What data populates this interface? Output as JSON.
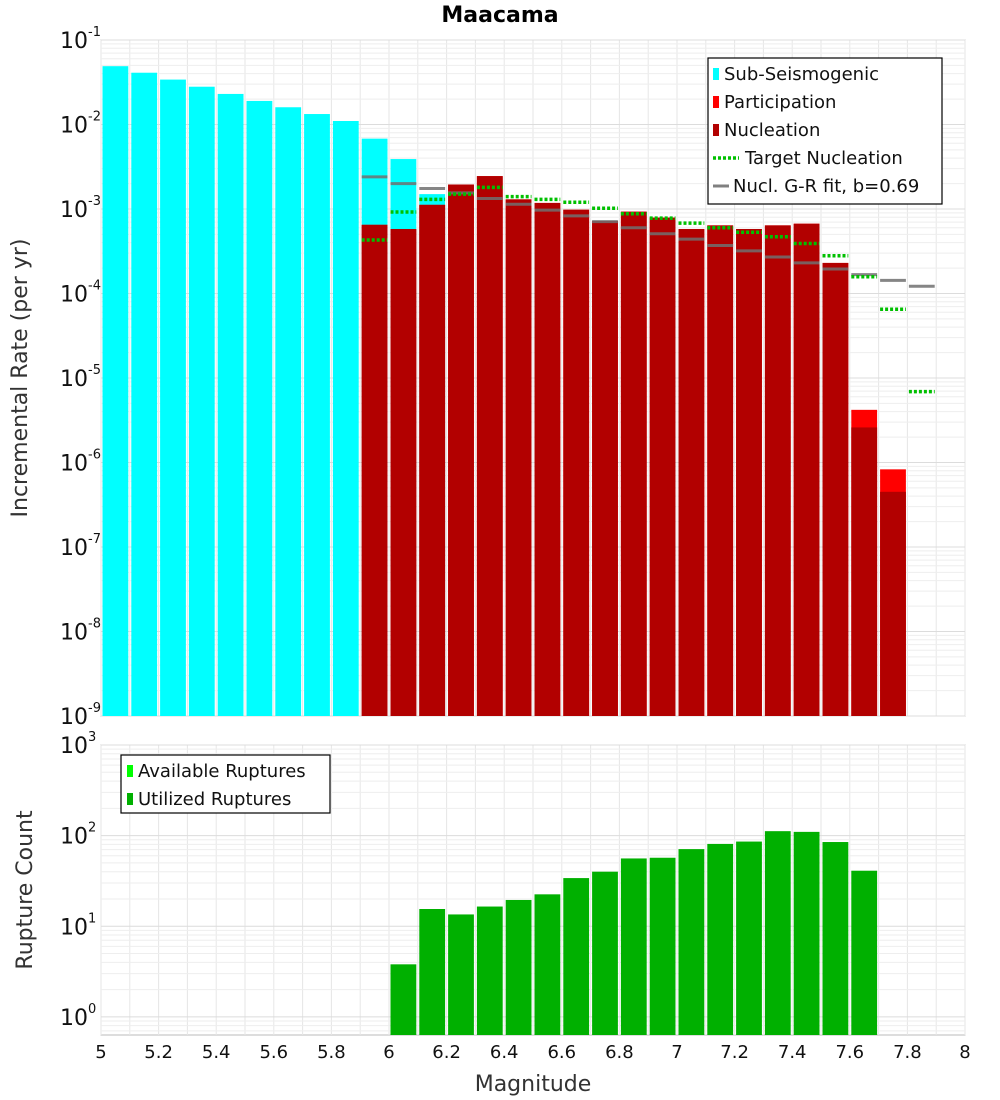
{
  "chart_data": [
    {
      "type": "bar",
      "title": "Maacama",
      "xlabel": "",
      "ylabel": "Incremental Rate (per yr)",
      "xlim": [
        5,
        8
      ],
      "ylim_log10": [
        -9,
        -1
      ],
      "log_y": true,
      "grid": true,
      "legend_position": "top-right",
      "bin_width": 0.1,
      "legend": [
        {
          "label": "Sub-Seismogenic",
          "kind": "bar",
          "color": "#00ffff"
        },
        {
          "label": "Participation",
          "kind": "bar",
          "color": "#ff0000"
        },
        {
          "label": "Nucleation",
          "kind": "bar",
          "color": "#b20000"
        },
        {
          "label": "Target Nucleation",
          "kind": "dotted-line",
          "color": "#00c000"
        },
        {
          "label": "Nucl. G-R fit, b=0.69",
          "kind": "line",
          "color": "#808080"
        }
      ],
      "series": [
        {
          "name": "Sub-Seismogenic",
          "color": "#00ffff",
          "x": [
            5.05,
            5.15,
            5.25,
            5.35,
            5.45,
            5.55,
            5.65,
            5.75,
            5.85,
            5.95,
            6.05,
            6.15
          ],
          "values": [
            0.049,
            0.041,
            0.034,
            0.028,
            0.023,
            0.019,
            0.016,
            0.0133,
            0.011,
            0.0068,
            0.0039,
            0.0015
          ]
        },
        {
          "name": "Participation",
          "color": "#ff0000",
          "x": [
            5.95,
            6.05,
            6.15,
            6.25,
            6.35,
            6.45,
            6.55,
            6.65,
            6.75,
            6.85,
            6.95,
            7.05,
            7.15,
            7.25,
            7.35,
            7.45,
            7.55,
            7.65,
            7.75
          ],
          "values": [
            0.00065,
            0.00058,
            0.00112,
            0.00195,
            0.00245,
            0.0013,
            0.00118,
            0.00098,
            0.00072,
            0.00093,
            0.00079,
            0.00058,
            0.00064,
            0.00058,
            0.00064,
            0.00067,
            0.00023,
            4.2e-06,
            8.3e-07
          ]
        },
        {
          "name": "Nucleation",
          "color": "#b20000",
          "x": [
            5.95,
            6.05,
            6.15,
            6.25,
            6.35,
            6.45,
            6.55,
            6.65,
            6.75,
            6.85,
            6.95,
            7.05,
            7.15,
            7.25,
            7.35,
            7.45,
            7.55,
            7.65,
            7.75
          ],
          "values": [
            0.00065,
            0.00058,
            0.00112,
            0.00195,
            0.00245,
            0.0013,
            0.00118,
            0.00098,
            0.00072,
            0.00093,
            0.00079,
            0.00058,
            0.00064,
            0.00058,
            0.00064,
            0.00067,
            0.00023,
            2.6e-06,
            4.5e-07
          ]
        },
        {
          "name": "Target Nucleation",
          "color": "#00c000",
          "x": [
            5.95,
            6.05,
            6.15,
            6.25,
            6.35,
            6.45,
            6.55,
            6.65,
            6.75,
            6.85,
            6.95,
            7.05,
            7.15,
            7.25,
            7.35,
            7.45,
            7.55,
            7.65,
            7.75,
            7.85
          ],
          "values": [
            0.00043,
            0.00092,
            0.0013,
            0.0015,
            0.0018,
            0.0014,
            0.0013,
            0.0012,
            0.00102,
            0.00088,
            0.00078,
            0.00068,
            0.0006,
            0.00053,
            0.00047,
            0.00039,
            0.00028,
            0.000158,
            6.5e-05,
            6.9e-06
          ]
        },
        {
          "name": "Nucl. G-R fit, b=0.69",
          "color": "#808080",
          "x": [
            5.95,
            6.05,
            6.15,
            6.25,
            6.35,
            6.45,
            6.55,
            6.65,
            6.75,
            6.85,
            6.95,
            7.05,
            7.15,
            7.25,
            7.35,
            7.45,
            7.55,
            7.65,
            7.75,
            7.85
          ],
          "values": [
            0.0024,
            0.002,
            0.00175,
            0.00155,
            0.00133,
            0.00114,
            0.00097,
            0.00083,
            0.00071,
            0.0006,
            0.00051,
            0.00044,
            0.00037,
            0.00032,
            0.00027,
            0.00023,
            0.000195,
            0.000167,
            0.000143,
            0.000122
          ]
        }
      ]
    },
    {
      "type": "bar",
      "xlabel": "Magnitude",
      "ylabel": "Rupture Count",
      "xlim": [
        5,
        8
      ],
      "ylim_log10": [
        -0.2,
        3
      ],
      "log_y": true,
      "grid": true,
      "legend_position": "top-left",
      "bin_width": 0.1,
      "x_ticks": [
        "5",
        "5.2",
        "5.4",
        "5.6",
        "5.8",
        "6",
        "6.2",
        "6.4",
        "6.6",
        "6.8",
        "7",
        "7.2",
        "7.4",
        "7.6",
        "7.8",
        "8"
      ],
      "legend": [
        {
          "label": "Available Ruptures",
          "kind": "bar",
          "color": "#00ff00"
        },
        {
          "label": "Utilized Ruptures",
          "kind": "bar",
          "color": "#00b000"
        }
      ],
      "series": [
        {
          "name": "Utilized Ruptures",
          "color": "#00b000",
          "x": [
            6.05,
            6.15,
            6.25,
            6.35,
            6.45,
            6.55,
            6.65,
            6.75,
            6.85,
            6.95,
            7.05,
            7.15,
            7.25,
            7.35,
            7.45,
            7.55,
            7.65
          ],
          "values": [
            3.8,
            15.5,
            13.5,
            16.5,
            19.5,
            22.5,
            34,
            40,
            56,
            57,
            71,
            81,
            86,
            112,
            110,
            85,
            41
          ]
        }
      ]
    }
  ]
}
